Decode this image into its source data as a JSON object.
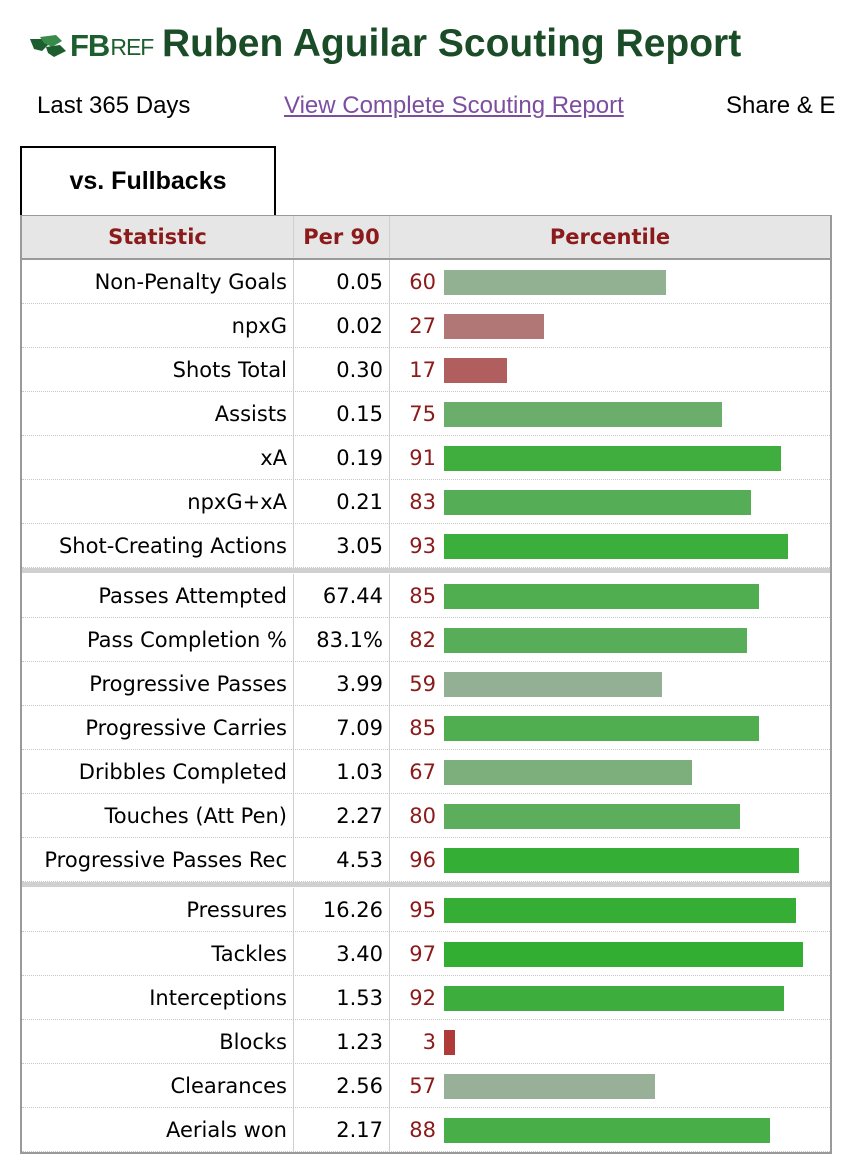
{
  "brand": {
    "logo_fb": "FB",
    "logo_ref": "REF",
    "logo_icon": "fbref-leaf-logo"
  },
  "page": {
    "title": "Ruben Aguilar Scouting Report"
  },
  "subnav": {
    "range": "Last 365 Days",
    "link": "View Complete Scouting Report",
    "share": "Share & E"
  },
  "tab": {
    "label": "vs. Fullbacks"
  },
  "table": {
    "headers": {
      "statistic": "Statistic",
      "per90": "Per 90",
      "percentile": "Percentile"
    },
    "groups": [
      [
        {
          "stat": "Non-Penalty Goals",
          "per90": "0.05",
          "pct": 60,
          "color": "#92b092"
        },
        {
          "stat": "npxG",
          "per90": "0.02",
          "pct": 27,
          "color": "#b07776"
        },
        {
          "stat": "Shots Total",
          "per90": "0.30",
          "pct": 17,
          "color": "#b05e5e"
        },
        {
          "stat": "Assists",
          "per90": "0.15",
          "pct": 75,
          "color": "#6bad6b"
        },
        {
          "stat": "xA",
          "per90": "0.19",
          "pct": 91,
          "color": "#3fae3f"
        },
        {
          "stat": "npxG+xA",
          "per90": "0.21",
          "pct": 83,
          "color": "#55ae55"
        },
        {
          "stat": "Shot-Creating Actions",
          "per90": "3.05",
          "pct": 93,
          "color": "#3bae3b"
        }
      ],
      [
        {
          "stat": "Passes Attempted",
          "per90": "67.44",
          "pct": 85,
          "color": "#50ae50"
        },
        {
          "stat": "Pass Completion %",
          "per90": "83.1%",
          "pct": 82,
          "color": "#58ae58"
        },
        {
          "stat": "Progressive Passes",
          "per90": "3.99",
          "pct": 59,
          "color": "#94b094"
        },
        {
          "stat": "Progressive Carries",
          "per90": "7.09",
          "pct": 85,
          "color": "#50ae50"
        },
        {
          "stat": "Dribbles Completed",
          "per90": "1.03",
          "pct": 67,
          "color": "#7daf7d"
        },
        {
          "stat": "Touches (Att Pen)",
          "per90": "2.27",
          "pct": 80,
          "color": "#5cae5c"
        },
        {
          "stat": "Progressive Passes Rec",
          "per90": "4.53",
          "pct": 96,
          "color": "#34ae34"
        }
      ],
      [
        {
          "stat": "Pressures",
          "per90": "16.26",
          "pct": 95,
          "color": "#36ae36"
        },
        {
          "stat": "Tackles",
          "per90": "3.40",
          "pct": 97,
          "color": "#32ae32"
        },
        {
          "stat": "Interceptions",
          "per90": "1.53",
          "pct": 92,
          "color": "#3dae3d"
        },
        {
          "stat": "Blocks",
          "per90": "1.23",
          "pct": 3,
          "color": "#b03a3a"
        },
        {
          "stat": "Clearances",
          "per90": "2.56",
          "pct": 57,
          "color": "#98b098"
        },
        {
          "stat": "Aerials won",
          "per90": "2.17",
          "pct": 88,
          "color": "#48ae48"
        }
      ]
    ]
  }
}
